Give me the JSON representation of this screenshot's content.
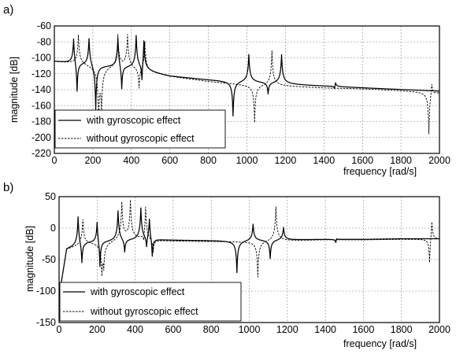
{
  "chart_data": [
    {
      "panel": "a)",
      "type": "line",
      "xlabel": "frequency [rad/s]",
      "ylabel": "magnitude [dB]",
      "xlim": [
        0,
        2000
      ],
      "ylim": [
        -220,
        -60
      ],
      "xticks": [
        "0",
        "200",
        "400",
        "600",
        "800",
        "1000",
        "1200",
        "1400",
        "1600",
        "1800",
        "2000"
      ],
      "yticks": [
        "-60",
        "-80",
        "-100",
        "-120",
        "-140",
        "-160",
        "-180",
        "-200",
        "-220"
      ],
      "grid": true,
      "legend_position": "bottom-left",
      "series": [
        {
          "name": "with gyroscopic effect",
          "style": "solid",
          "base": {
            "points": [
              [
                0,
                -105
              ],
              [
                200,
                -110
              ],
              [
                400,
                -115
              ],
              [
                600,
                -124
              ],
              [
                800,
                -128
              ],
              [
                1000,
                -131
              ],
              [
                1200,
                -134
              ],
              [
                1400,
                -136
              ],
              [
                1600,
                -138
              ],
              [
                1800,
                -140
              ],
              [
                2000,
                -142
              ]
            ]
          },
          "resonances": [
            {
              "f": 100,
              "peak": -71,
              "antiF": 118,
              "anti": -150
            },
            {
              "f": 180,
              "peak": -72,
              "antiF": 215,
              "anti": -170
            },
            {
              "f": 330,
              "peak": -72,
              "antiF": 350,
              "anti": -148
            },
            {
              "f": 425,
              "peak": -73,
              "antiF": 455,
              "anti": -146
            },
            {
              "f": 465,
              "peak": -75
            },
            {
              "f": 1010,
              "peak": -95,
              "antiF": 928,
              "anti": -175
            },
            {
              "f": 1180,
              "peak": -96,
              "antiF": 1110,
              "anti": -148
            },
            {
              "f": 1460,
              "peak": -129,
              "antiF": 1455,
              "anti": -143
            }
          ]
        },
        {
          "name": "without gyroscopic effect",
          "style": "dashed",
          "base": {
            "points": [
              [
                0,
                -105
              ],
              [
                200,
                -110
              ],
              [
                400,
                -115
              ],
              [
                600,
                -124
              ],
              [
                800,
                -130
              ],
              [
                1000,
                -134
              ],
              [
                1200,
                -136
              ],
              [
                1400,
                -138
              ],
              [
                1600,
                -139
              ],
              [
                1800,
                -141
              ],
              [
                2000,
                -143
              ]
            ]
          },
          "resonances": [
            {
              "f": 125,
              "peak": -70,
              "antiF": 230,
              "anti": -175
            },
            {
              "f": 330,
              "peak": -71,
              "antiF": 245,
              "anti": -160
            },
            {
              "f": 380,
              "peak": -72,
              "antiF": 440,
              "anti": -145
            },
            {
              "f": 470,
              "peak": -79
            },
            {
              "f": 1130,
              "peak": -90,
              "antiF": 1040,
              "anti": -183
            },
            {
              "f": 1960,
              "peak": -123,
              "antiF": 1945,
              "anti": -200
            }
          ]
        }
      ]
    },
    {
      "panel": "b)",
      "type": "line",
      "xlabel": "frequency [rad/s]",
      "ylabel": "magnitude [dB]",
      "xlim": [
        0,
        2000
      ],
      "ylim": [
        -150,
        50
      ],
      "xticks": [
        "0",
        "200",
        "400",
        "600",
        "800",
        "1000",
        "1200",
        "1400",
        "1600",
        "1800",
        "2000"
      ],
      "yticks": [
        "50",
        "0",
        "-50",
        "-100",
        "-150"
      ],
      "grid": true,
      "legend_position": "bottom-left",
      "series": [
        {
          "name": "with gyroscopic effect",
          "style": "solid",
          "base": {
            "points": [
              [
                0,
                -110
              ],
              [
                40,
                -35
              ],
              [
                150,
                -25
              ],
              [
                350,
                -22
              ],
              [
                500,
                -20
              ],
              [
                700,
                -20
              ],
              [
                1000,
                -20
              ],
              [
                1200,
                -19
              ],
              [
                1400,
                -18
              ],
              [
                1600,
                -18
              ],
              [
                1800,
                -17
              ],
              [
                2000,
                -17
              ]
            ]
          },
          "resonances": [
            {
              "f": 100,
              "peak": 22,
              "antiF": 120,
              "anti": -65
            },
            {
              "f": 200,
              "peak": 16,
              "antiF": 215,
              "anti": -72
            },
            {
              "f": 310,
              "peak": 28,
              "antiF": 345,
              "anti": -45
            },
            {
              "f": 430,
              "peak": 32,
              "antiF": 460,
              "anti": -42
            },
            {
              "f": 475,
              "peak": 20,
              "antiF": 490,
              "anti": -55
            },
            {
              "f": 1020,
              "peak": 8,
              "antiF": 935,
              "anti": -72
            },
            {
              "f": 1180,
              "peak": 2,
              "antiF": 1110,
              "anti": -50
            },
            {
              "f": 1460,
              "peak": -14,
              "antiF": 1455,
              "anti": -25
            }
          ]
        },
        {
          "name": "without gyroscopic effect",
          "style": "dashed",
          "base": {
            "points": [
              [
                0,
                -110
              ],
              [
                40,
                -35
              ],
              [
                150,
                -26
              ],
              [
                350,
                -23
              ],
              [
                500,
                -22
              ],
              [
                700,
                -22
              ],
              [
                1000,
                -22
              ],
              [
                1200,
                -21
              ],
              [
                1400,
                -19
              ],
              [
                1600,
                -19
              ],
              [
                1800,
                -18
              ],
              [
                2000,
                -18
              ]
            ]
          },
          "resonances": [
            {
              "f": 125,
              "peak": 14,
              "antiF": 225,
              "anti": -72
            },
            {
              "f": 330,
              "peak": 38,
              "antiF": 235,
              "anti": -60
            },
            {
              "f": 375,
              "peak": 40,
              "antiF": 445,
              "anti": -40
            },
            {
              "f": 455,
              "peak": 36,
              "antiF": 495,
              "anti": -45
            },
            {
              "f": 1140,
              "peak": 35,
              "antiF": 1045,
              "anti": -80
            },
            {
              "f": 1960,
              "peak": 20,
              "antiF": 1948,
              "anti": -65
            }
          ]
        }
      ]
    }
  ]
}
